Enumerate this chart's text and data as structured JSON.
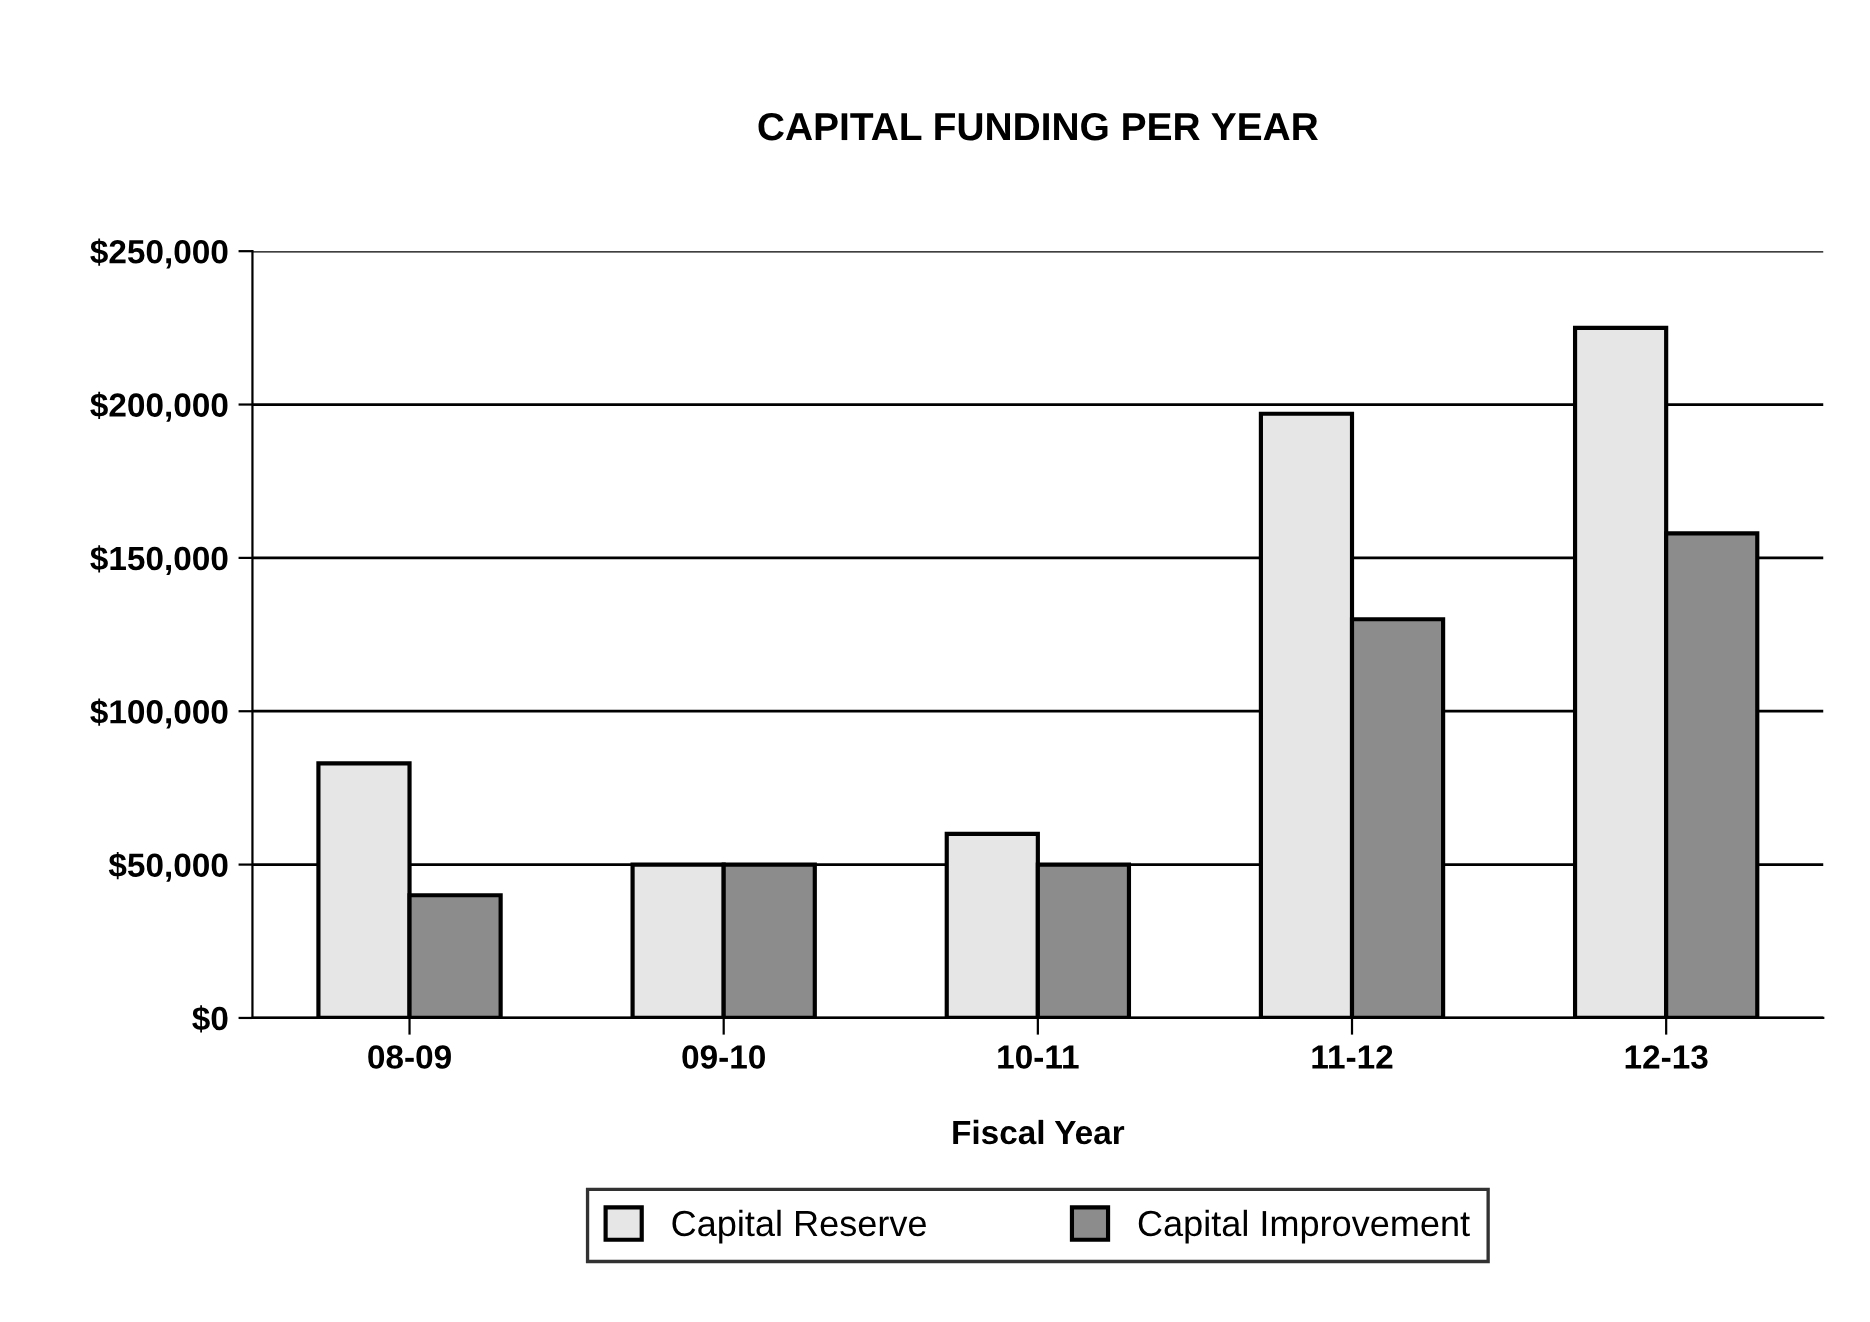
{
  "chart_data": {
    "type": "bar",
    "title": "CAPITAL FUNDING PER YEAR",
    "xlabel": "Fiscal Year",
    "categories": [
      "08-09",
      "09-10",
      "10-11",
      "11-12",
      "12-13"
    ],
    "series": [
      {
        "name": "Capital Reserve",
        "color": "#e6e6e6",
        "values": [
          83000,
          50000,
          60000,
          197000,
          225000
        ]
      },
      {
        "name": "Capital Improvement",
        "color": "#8c8c8c",
        "values": [
          40000,
          50000,
          50000,
          130000,
          158000
        ]
      }
    ],
    "ylim": [
      0,
      250000
    ],
    "yticks": [
      {
        "value": 0,
        "label": "$0"
      },
      {
        "value": 50000,
        "label": "$50,000"
      },
      {
        "value": 100000,
        "label": "$100,000"
      },
      {
        "value": 150000,
        "label": "$150,000"
      },
      {
        "value": 200000,
        "label": "$200,000"
      },
      {
        "value": 250000,
        "label": "$250,000"
      }
    ],
    "grid": "y",
    "legend": "bottom"
  }
}
